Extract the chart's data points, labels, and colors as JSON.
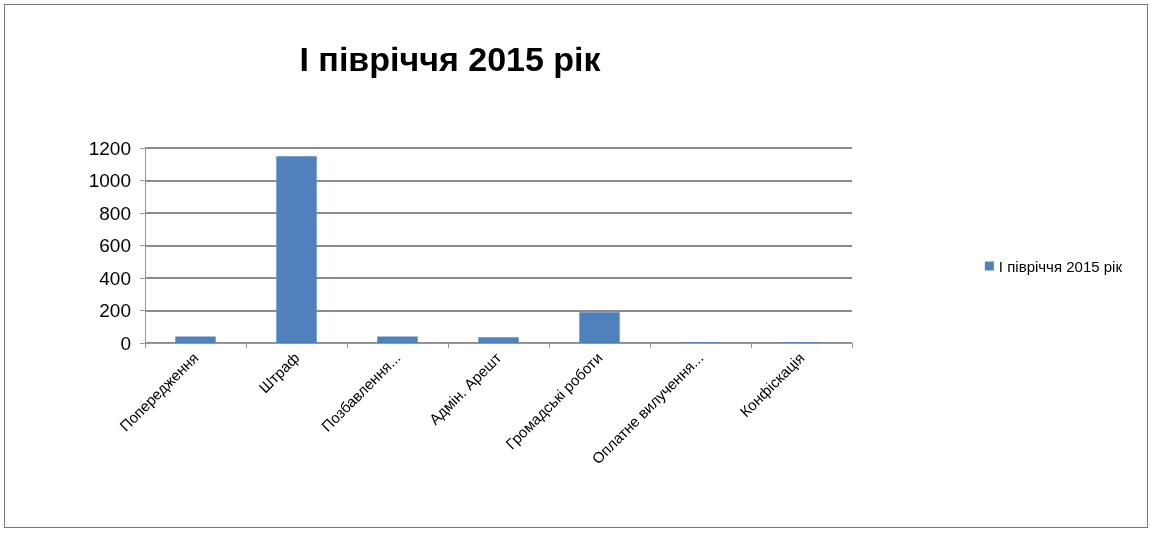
{
  "chart_data": {
    "type": "bar",
    "title": "І півріччя 2015 рік",
    "categories": [
      "Попередження",
      "Штраф",
      "Позбавлення...",
      "Адмін. Арешт",
      "Громадські роботи",
      "Оплатне вилучення...",
      "Конфіскація"
    ],
    "series": [
      {
        "name": "І півріччя 2015 рік",
        "color": "#4f81bd",
        "values": [
          40,
          1150,
          40,
          35,
          190,
          5,
          5
        ]
      }
    ],
    "ylim": [
      0,
      1200
    ],
    "yticks": [
      0,
      200,
      400,
      600,
      800,
      1000,
      1200
    ],
    "grid": "y",
    "legend": "right"
  }
}
